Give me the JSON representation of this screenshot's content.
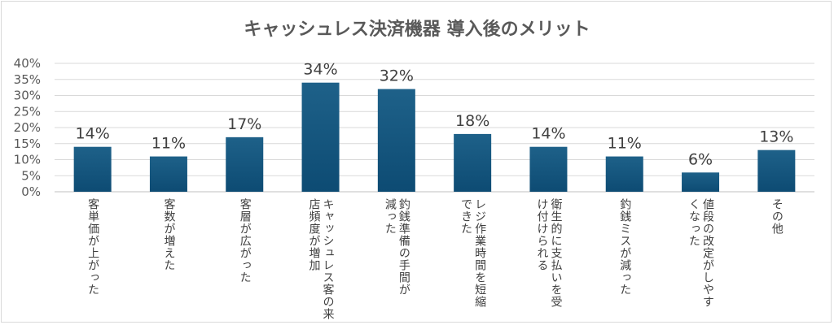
{
  "chart_data": {
    "type": "bar",
    "title": "キャッシュレス決済機器 導入後のメリット",
    "categories": [
      "客単価が上がった",
      "客数が増えた",
      "客層が広がった",
      "キャッシュレス客の来\n店頻度が増加",
      "釣銭準備の手間が\n減った",
      "レジ作業時間を短縮\nできた",
      "衛生的に支払いを受\nけ付けられる",
      "釣銭ミスが減った",
      "値段の改定がしやす\nくなった",
      "その他"
    ],
    "values": [
      14,
      11,
      17,
      34,
      32,
      18,
      14,
      11,
      6,
      13
    ],
    "data_labels": [
      "14%",
      "11%",
      "17%",
      "34%",
      "32%",
      "18%",
      "14%",
      "11%",
      "6%",
      "13%"
    ],
    "ylim": [
      0,
      40
    ],
    "yticks": [
      "0%",
      "5%",
      "10%",
      "15%",
      "20%",
      "25%",
      "30%",
      "35%",
      "40%"
    ],
    "xlabel": "",
    "ylabel": "",
    "grid": true,
    "legend": "none",
    "bar_color_top": "#1e6189",
    "bar_color_bottom": "#0d4b73"
  }
}
